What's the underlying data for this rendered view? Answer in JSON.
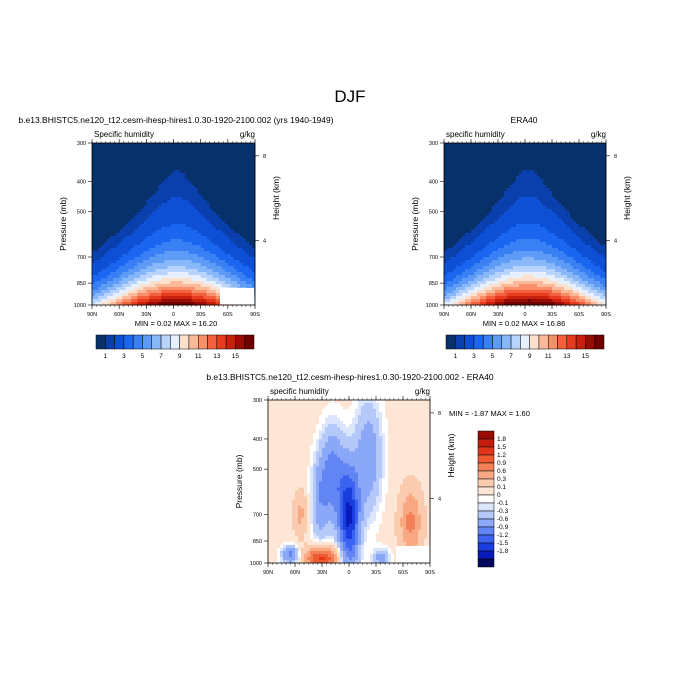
{
  "figure": {
    "title": "DJF",
    "panel1_title": "b.e13.BHISTC5.ne120_t12.cesm-ihesp-hires1.0.30-1920-2100.002 (yrs 1940-1949)",
    "panel2_title": "ERA40",
    "panel3_title": "b.e13.BHISTC5.ne120_t12.cesm-ihesp-hires1.0.30-1920-2100.002 - ERA40"
  },
  "colors": {
    "full_palette": [
      "#08306b",
      "#0a3fae",
      "#0d50d6",
      "#1a66f0",
      "#3a80f5",
      "#5d9bf7",
      "#88b8fa",
      "#b8d4fc",
      "#e6f0ff",
      "#fde0cc",
      "#fbb99a",
      "#f88f68",
      "#f3603e",
      "#e63b1e",
      "#c8200c",
      "#9a0d04",
      "#700000"
    ],
    "diff_palette": [
      "#04095e",
      "#0a1ab8",
      "#1a3de0",
      "#3b62f0",
      "#6285f4",
      "#8aa8f7",
      "#b4c8fa",
      "#dbe5fc",
      "#ffffff",
      "#fde6d6",
      "#fbcbb0",
      "#f8a983",
      "#f38158",
      "#ee5a32",
      "#e2361a",
      "#c41d0c",
      "#9a0c04"
    ]
  },
  "chart_data": [
    {
      "type": "heatmap",
      "panel": "model",
      "title": "b.e13.BHISTC5.ne120_t12.cesm-ihesp-hires1.0.30-1920-2100.002 (yrs 1940-1949)",
      "left_label": "Specific humidity",
      "right_label": "g/kg",
      "ylabel": "Pressure (mb)",
      "ylabel_right": "Height (km)",
      "x_ticks": [
        "90N",
        "60N",
        "30N",
        "0",
        "30S",
        "60S",
        "90S"
      ],
      "y_ticks": [
        "300",
        "400",
        "500",
        "700",
        "850",
        "1000"
      ],
      "y_ticks_right": [
        "8",
        "4"
      ],
      "ylim": [
        1000,
        300
      ],
      "stats": "MIN =  0.02  MAX = 16.20",
      "peak_value": 16.2,
      "colorbar_labels": [
        "1",
        "3",
        "5",
        "7",
        "9",
        "11",
        "13",
        "15"
      ],
      "levels": [
        0.5,
        1,
        2,
        3,
        4,
        5,
        6,
        7,
        8,
        9,
        10,
        11,
        12,
        13,
        14,
        15
      ]
    },
    {
      "type": "heatmap",
      "panel": "era40",
      "title": "ERA40",
      "left_label": "specific humidity",
      "right_label": "g/kg",
      "ylabel": "Pressure (mb)",
      "ylabel_right": "Height (km)",
      "x_ticks": [
        "90N",
        "60N",
        "30N",
        "0",
        "30S",
        "60S",
        "90S"
      ],
      "y_ticks": [
        "300",
        "400",
        "500",
        "700",
        "850",
        "1000"
      ],
      "y_ticks_right": [
        "8",
        "4"
      ],
      "ylim": [
        1000,
        300
      ],
      "stats": "MIN =  0.02  MAX = 16.86",
      "peak_value": 16.86,
      "colorbar_labels": [
        "1",
        "3",
        "5",
        "7",
        "9",
        "11",
        "13",
        "15"
      ],
      "levels": [
        0.5,
        1,
        2,
        3,
        4,
        5,
        6,
        7,
        8,
        9,
        10,
        11,
        12,
        13,
        14,
        15
      ]
    },
    {
      "type": "heatmap",
      "panel": "difference",
      "title": "b.e13.BHISTC5.ne120_t12.cesm-ihesp-hires1.0.30-1920-2100.002 - ERA40",
      "left_label": "specific humidity",
      "right_label": "g/kg",
      "ylabel": "Pressure (mb)",
      "ylabel_right": "Height (km)",
      "x_ticks": [
        "90N",
        "60N",
        "30N",
        "0",
        "30S",
        "60S",
        "90S"
      ],
      "y_ticks": [
        "300",
        "400",
        "500",
        "700",
        "850",
        "1000"
      ],
      "y_ticks_right": [
        "8",
        "4"
      ],
      "ylim": [
        1000,
        300
      ],
      "stats": "MIN = -1.87  MAX =  1.60",
      "colorbar_labels": [
        "1.8",
        "1.5",
        "1.2",
        "0.9",
        "0.6",
        "0.3",
        "0.1",
        "0",
        "-0.1",
        "-0.3",
        "-0.6",
        "-0.9",
        "-1.2",
        "-1.5",
        "-1.8"
      ]
    }
  ]
}
